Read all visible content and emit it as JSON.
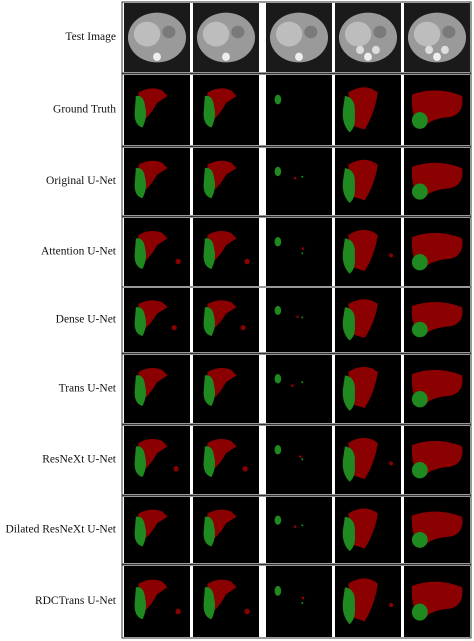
{
  "rows": [
    "Test Image",
    "Ground Truth",
    "Original U-Net",
    "Attention U-Net",
    "Dense U-Net",
    "Trans U-Net",
    "ResNeXt U-Net",
    "Dilated ResNeXt U-Net",
    "RDCTrans U-Net"
  ]
}
